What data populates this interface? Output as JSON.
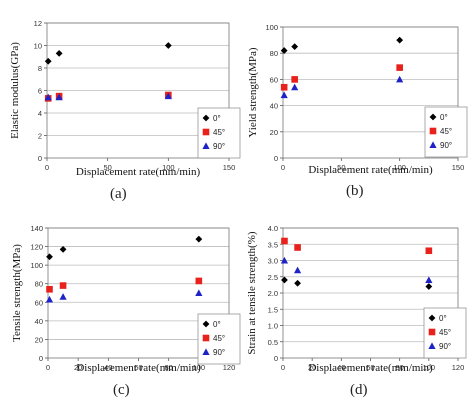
{
  "chart_data": [
    {
      "type": "scatter",
      "panel_label": "(a)",
      "ylabel": "Elastic modulus(GPa)",
      "xlabel": "Displacement  rate(mm/min)",
      "xlim": [
        0,
        150
      ],
      "ylim": [
        0,
        12
      ],
      "xticks": [
        "0",
        "50",
        "100",
        "150"
      ],
      "yticks": [
        "0",
        "2",
        "4",
        "6",
        "8",
        "10",
        "12"
      ],
      "grid": "horizontal",
      "legend_position": "bottom-right",
      "series": [
        {
          "name": "0°",
          "marker": "diamond",
          "color": "#000000",
          "points": [
            [
              1,
              8.6
            ],
            [
              10,
              9.3
            ],
            [
              100,
              10.0
            ]
          ]
        },
        {
          "name": "45°",
          "marker": "square",
          "color": "#e8211d",
          "points": [
            [
              1,
              5.3
            ],
            [
              10,
              5.5
            ],
            [
              100,
              5.6
            ]
          ]
        },
        {
          "name": "90°",
          "marker": "triangle",
          "color": "#1e23c8",
          "points": [
            [
              1,
              5.4
            ],
            [
              10,
              5.4
            ],
            [
              100,
              5.5
            ]
          ]
        }
      ]
    },
    {
      "type": "scatter",
      "panel_label": "(b)",
      "ylabel": "Yield strength(MPa)",
      "xlabel": "Displacement  rate(mm/min)",
      "xlim": [
        0,
        150
      ],
      "ylim": [
        0,
        100
      ],
      "xticks": [
        "0",
        "50",
        "100",
        "150"
      ],
      "yticks": [
        "0",
        "20",
        "40",
        "60",
        "80",
        "100"
      ],
      "grid": "horizontal",
      "legend_position": "bottom-right",
      "series": [
        {
          "name": "0°",
          "marker": "diamond",
          "color": "#000000",
          "points": [
            [
              1,
              82
            ],
            [
              10,
              85
            ],
            [
              100,
              90
            ]
          ]
        },
        {
          "name": "45°",
          "marker": "square",
          "color": "#e8211d",
          "points": [
            [
              1,
              54
            ],
            [
              10,
              60
            ],
            [
              100,
              69
            ]
          ]
        },
        {
          "name": "90°",
          "marker": "triangle",
          "color": "#1e23c8",
          "points": [
            [
              1,
              48
            ],
            [
              10,
              54
            ],
            [
              100,
              60
            ]
          ]
        }
      ]
    },
    {
      "type": "scatter",
      "panel_label": "(c)",
      "ylabel": "Tensile strength(MPa)",
      "xlabel": "Displacement  rate(mm/min)",
      "xlim": [
        0,
        120
      ],
      "ylim": [
        0,
        140
      ],
      "xticks": [
        "0",
        "20",
        "40",
        "60",
        "80",
        "100",
        "120"
      ],
      "yticks": [
        "0",
        "20",
        "40",
        "60",
        "80",
        "100",
        "120",
        "140"
      ],
      "grid": "horizontal",
      "legend_position": "bottom-right",
      "series": [
        {
          "name": "0°",
          "marker": "diamond",
          "color": "#000000",
          "points": [
            [
              1,
              109
            ],
            [
              10,
              117
            ],
            [
              100,
              128
            ]
          ]
        },
        {
          "name": "45°",
          "marker": "square",
          "color": "#e8211d",
          "points": [
            [
              1,
              74
            ],
            [
              10,
              78
            ],
            [
              100,
              83
            ]
          ]
        },
        {
          "name": "90°",
          "marker": "triangle",
          "color": "#1e23c8",
          "points": [
            [
              1,
              63
            ],
            [
              10,
              66
            ],
            [
              100,
              70
            ]
          ]
        }
      ]
    },
    {
      "type": "scatter",
      "panel_label": "(d)",
      "ylabel": "Strain at tensile strength(%)",
      "xlabel": "Displacement  rate(mm/min)",
      "xlim": [
        0,
        120
      ],
      "ylim": [
        0,
        4.0
      ],
      "xticks": [
        "0",
        "20",
        "40",
        "60",
        "80",
        "100",
        "120"
      ],
      "yticks": [
        "0",
        "0.5",
        "1.0",
        "1.5",
        "2.0",
        "2.5",
        "3.0",
        "3.5",
        "4.0"
      ],
      "grid": "horizontal",
      "legend_position": "bottom-right",
      "series": [
        {
          "name": "0°",
          "marker": "diamond",
          "color": "#000000",
          "points": [
            [
              1,
              2.4
            ],
            [
              10,
              2.3
            ],
            [
              100,
              2.2
            ]
          ]
        },
        {
          "name": "45°",
          "marker": "square",
          "color": "#e8211d",
          "points": [
            [
              1,
              3.6
            ],
            [
              10,
              3.4
            ],
            [
              100,
              3.3
            ]
          ]
        },
        {
          "name": "90°",
          "marker": "triangle",
          "color": "#1e23c8",
          "points": [
            [
              1,
              3.0
            ],
            [
              10,
              2.7
            ],
            [
              100,
              2.4
            ]
          ]
        }
      ]
    }
  ]
}
